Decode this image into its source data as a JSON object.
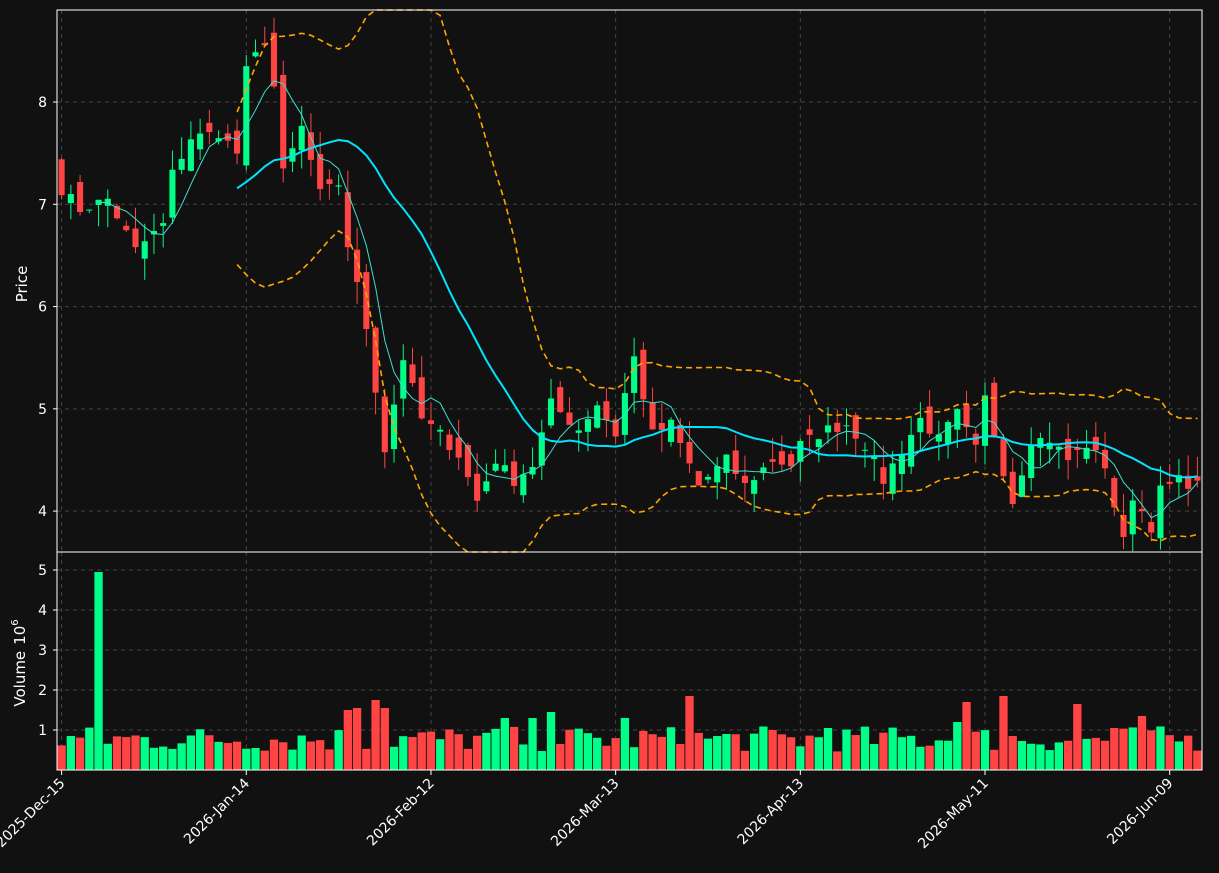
{
  "chart_data": {
    "type": "candlestick",
    "grid": true,
    "colors": {
      "background": "#111111",
      "up": "#00ff88",
      "down": "#ff4444",
      "ma_fast": "#40e0d0",
      "ma_slow": "#00e5ff",
      "bands": "#ffa500",
      "grid": "#444444",
      "frame": "#ffffff"
    },
    "price_panel": {
      "ylabel": "Price",
      "ylim": [
        3.6,
        8.9
      ],
      "yticks": [
        "4",
        "5",
        "6",
        "7",
        "8"
      ]
    },
    "volume_panel": {
      "ylabel": "Volume",
      "ylabel_exp": "10",
      "ylabel_sup": "6",
      "ylim": [
        0,
        5.45
      ],
      "yticks": [
        "1",
        "2",
        "3",
        "4",
        "5"
      ],
      "unit": "millions"
    },
    "x_ticks": [
      {
        "index": 0,
        "label": "2025-Dec-15"
      },
      {
        "index": 20,
        "label": "2026-Jan-14"
      },
      {
        "index": 40,
        "label": "2026-Feb-12"
      },
      {
        "index": 60,
        "label": "2026-Mar-13"
      },
      {
        "index": 80,
        "label": "2026-Apr-13"
      },
      {
        "index": 100,
        "label": "2026-May-11"
      },
      {
        "index": 120,
        "label": "2026-Jun-09"
      }
    ],
    "n_bars": 124,
    "x_range": [
      -0.5,
      123.5
    ],
    "close_anchors": [
      [
        0,
        7.15
      ],
      [
        2,
        6.95
      ],
      [
        5,
        7.05
      ],
      [
        8,
        6.55
      ],
      [
        11,
        6.8
      ],
      [
        12,
        7.3
      ],
      [
        14,
        7.65
      ],
      [
        17,
        7.7
      ],
      [
        19,
        7.5
      ],
      [
        20,
        8.3
      ],
      [
        22,
        8.6
      ],
      [
        23,
        8.15
      ],
      [
        24,
        7.3
      ],
      [
        26,
        7.75
      ],
      [
        28,
        7.1
      ],
      [
        30,
        7.2
      ],
      [
        31,
        6.6
      ],
      [
        33,
        5.8
      ],
      [
        35,
        4.6
      ],
      [
        37,
        5.5
      ],
      [
        39,
        4.9
      ],
      [
        41,
        4.75
      ],
      [
        43,
        4.55
      ],
      [
        45,
        4.1
      ],
      [
        47,
        4.5
      ],
      [
        49,
        4.3
      ],
      [
        51,
        4.45
      ],
      [
        53,
        5.05
      ],
      [
        56,
        4.8
      ],
      [
        58,
        5.05
      ],
      [
        60,
        4.75
      ],
      [
        61,
        5.15
      ],
      [
        62,
        5.5
      ],
      [
        64,
        4.75
      ],
      [
        66,
        4.85
      ],
      [
        69,
        4.25
      ],
      [
        72,
        4.5
      ],
      [
        74,
        4.25
      ],
      [
        77,
        4.5
      ],
      [
        79,
        4.45
      ],
      [
        80,
        4.65
      ],
      [
        83,
        4.8
      ],
      [
        85,
        4.85
      ],
      [
        87,
        4.65
      ],
      [
        89,
        4.3
      ],
      [
        91,
        4.6
      ],
      [
        93,
        4.9
      ],
      [
        95,
        4.7
      ],
      [
        97,
        4.95
      ],
      [
        99,
        4.6
      ],
      [
        100,
        5.1
      ],
      [
        102,
        4.4
      ],
      [
        103,
        4.1
      ],
      [
        105,
        4.7
      ],
      [
        107,
        4.7
      ],
      [
        109,
        4.5
      ],
      [
        111,
        4.65
      ],
      [
        113,
        4.45
      ],
      [
        114,
        4.05
      ],
      [
        115,
        3.7
      ],
      [
        116,
        4.15
      ],
      [
        118,
        3.85
      ],
      [
        119,
        4.2
      ],
      [
        121,
        4.3
      ],
      [
        123,
        4.25
      ]
    ],
    "vol_spikes": [
      [
        4,
        4.95
      ],
      [
        31,
        1.5
      ],
      [
        32,
        1.55
      ],
      [
        34,
        1.75
      ],
      [
        35,
        1.55
      ],
      [
        48,
        1.3
      ],
      [
        51,
        1.3
      ],
      [
        53,
        1.45
      ],
      [
        61,
        1.3
      ],
      [
        68,
        1.85
      ],
      [
        83,
        1.05
      ],
      [
        97,
        1.2
      ],
      [
        98,
        1.7
      ],
      [
        102,
        1.85
      ],
      [
        110,
        1.65
      ],
      [
        114,
        1.05
      ],
      [
        117,
        1.35
      ]
    ],
    "ma_fast_window": 5,
    "ma_slow_window": 20,
    "band_width_std": 2
  }
}
